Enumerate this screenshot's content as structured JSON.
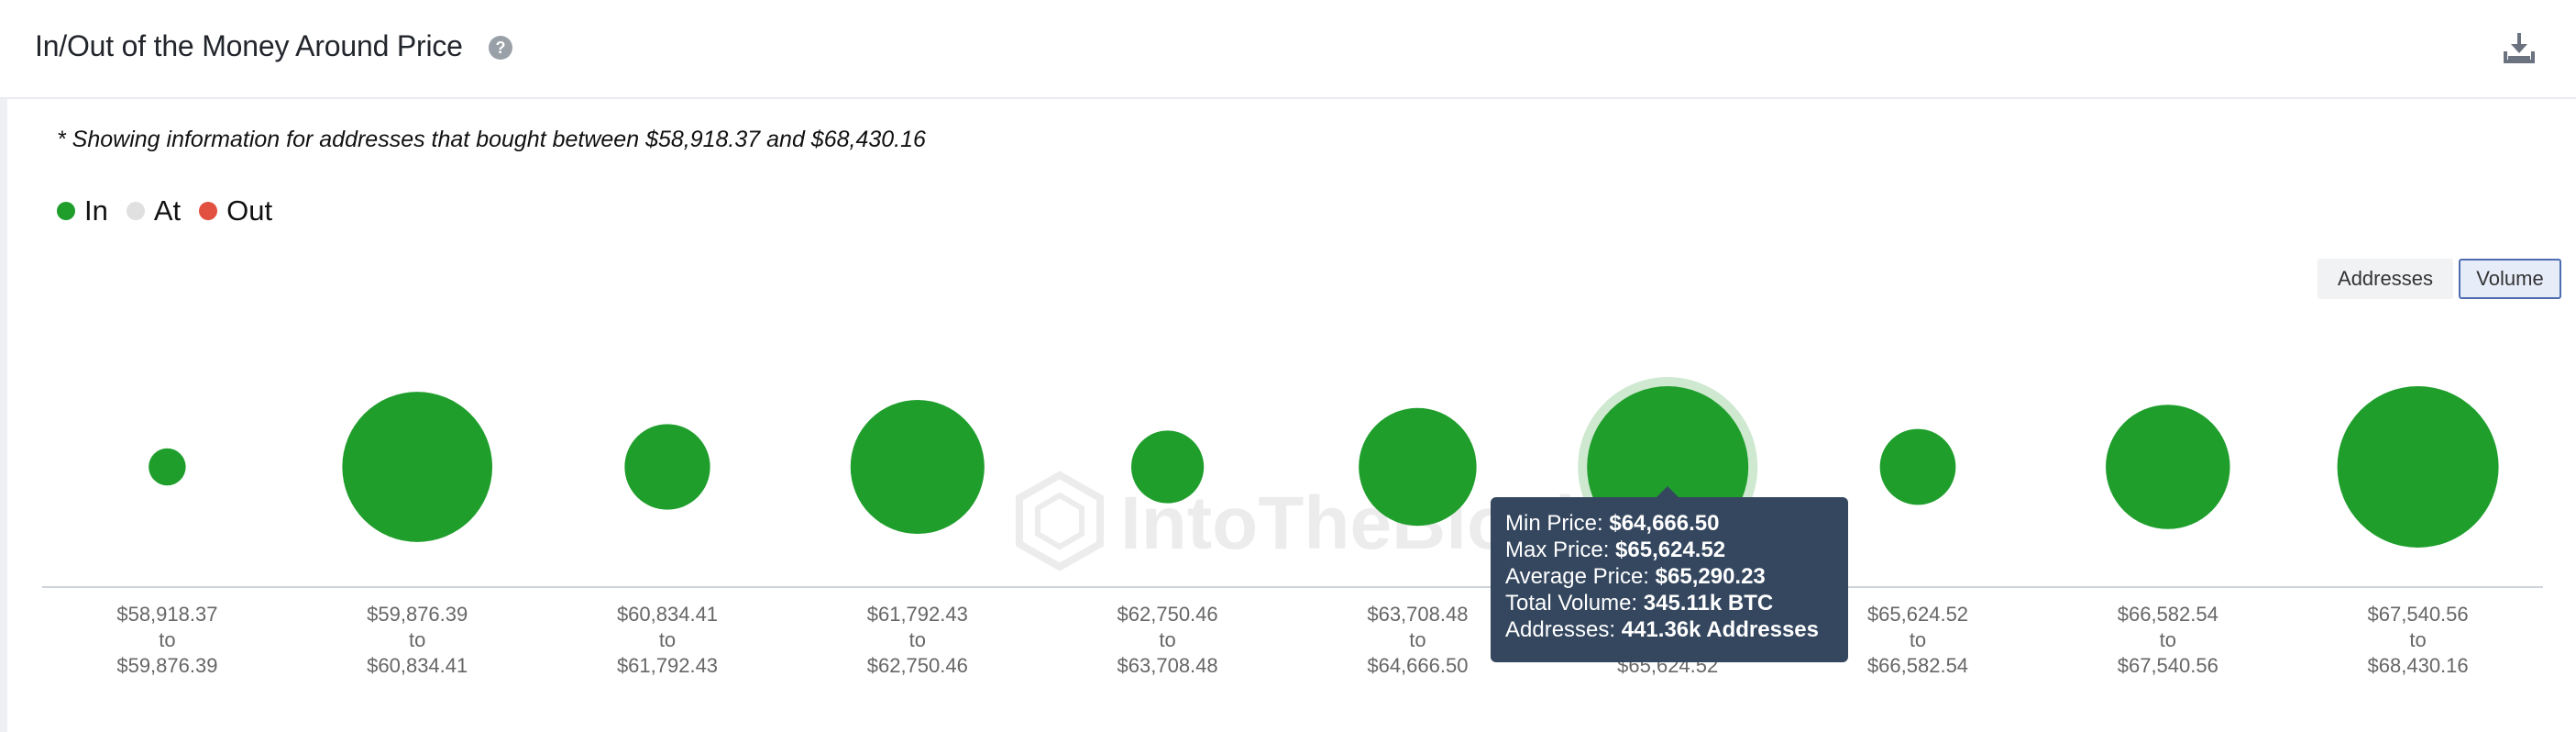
{
  "header": {
    "title": "In/Out of the Money Around Price",
    "help_icon": "question-circle-icon",
    "download_icon": "download-icon"
  },
  "note": "* Showing information for addresses that bought between $58,918.37 and $68,430.16",
  "legend": [
    {
      "label": "In",
      "color": "#1f9e2c"
    },
    {
      "label": "At",
      "color": "#e0e0e0"
    },
    {
      "label": "Out",
      "color": "#e2503f"
    }
  ],
  "toggles": {
    "addresses": "Addresses",
    "volume": "Volume",
    "active": "volume"
  },
  "watermark": "IntoTheBlock",
  "chart_data": {
    "type": "bubble",
    "metric": "volume",
    "categories": [
      {
        "from": "$58,918.37",
        "to": "$59,876.39",
        "status": "in",
        "size": 0.23
      },
      {
        "from": "$59,876.39",
        "to": "$60,834.41",
        "status": "in",
        "size": 0.93
      },
      {
        "from": "$60,834.41",
        "to": "$61,792.43",
        "status": "in",
        "size": 0.53
      },
      {
        "from": "$61,792.43",
        "to": "$62,750.46",
        "status": "in",
        "size": 0.83
      },
      {
        "from": "$62,750.46",
        "to": "$63,708.48",
        "status": "in",
        "size": 0.45
      },
      {
        "from": "$63,708.48",
        "to": "$64,666.50",
        "status": "in",
        "size": 0.73
      },
      {
        "from": "$64,666.50",
        "to": "$65,624.52",
        "status": "in",
        "size": 1.0
      },
      {
        "from": "$65,624.52",
        "to": "$66,582.54",
        "status": "in",
        "size": 0.47
      },
      {
        "from": "$66,582.54",
        "to": "$67,540.56",
        "status": "in",
        "size": 0.77
      },
      {
        "from": "$67,540.56",
        "to": "$68,430.16",
        "status": "in",
        "size": 1.0
      }
    ],
    "highlighted_index": 6,
    "tooltip": [
      {
        "label": "Min Price:",
        "value": "$64,666.50"
      },
      {
        "label": "Max Price:",
        "value": "$65,624.52"
      },
      {
        "label": "Average Price:",
        "value": "$65,290.23"
      },
      {
        "label": "Total Volume:",
        "value": "345.11k BTC"
      },
      {
        "label": "Addresses:",
        "value": "441.36k Addresses"
      }
    ],
    "to_label": "to"
  }
}
